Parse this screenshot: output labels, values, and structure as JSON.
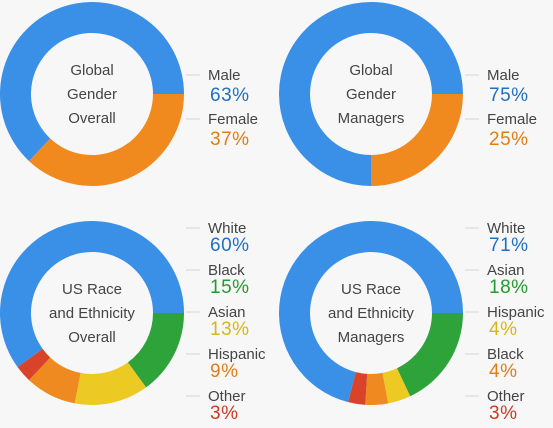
{
  "chart_data": [
    {
      "type": "donut",
      "title_lines": [
        "Global",
        "Gender",
        "Overall"
      ],
      "slices": [
        {
          "label": "Male",
          "value": 63,
          "display": "63%",
          "color": "#3a8fe6",
          "label_color": "#1f6fc2"
        },
        {
          "label": "Female",
          "value": 37,
          "display": "37%",
          "color": "#f08a1f",
          "label_color": "#e07d18"
        }
      ]
    },
    {
      "type": "donut",
      "title_lines": [
        "Global",
        "Gender",
        "Managers"
      ],
      "slices": [
        {
          "label": "Male",
          "value": 75,
          "display": "75%",
          "color": "#3a8fe6",
          "label_color": "#1f6fc2"
        },
        {
          "label": "Female",
          "value": 25,
          "display": "25%",
          "color": "#f08a1f",
          "label_color": "#e07d18"
        }
      ]
    },
    {
      "type": "donut",
      "title_lines": [
        "US Race",
        "and Ethnicity",
        "Overall"
      ],
      "slices": [
        {
          "label": "White",
          "value": 60,
          "display": "60%",
          "color": "#3a8fe6",
          "label_color": "#1f6fc2"
        },
        {
          "label": "Black",
          "value": 15,
          "display": "15%",
          "color": "#2ea33a",
          "label_color": "#259a2e"
        },
        {
          "label": "Asian",
          "value": 13,
          "display": "13%",
          "color": "#ecc923",
          "label_color": "#d8b51a"
        },
        {
          "label": "Hispanic",
          "value": 9,
          "display": "9%",
          "color": "#ee8a1f",
          "label_color": "#e07d18"
        },
        {
          "label": "Other",
          "value": 3,
          "display": "3%",
          "color": "#d8432a",
          "label_color": "#c83a26"
        }
      ]
    },
    {
      "type": "donut",
      "title_lines": [
        "US Race",
        "and Ethnicity",
        "Managers"
      ],
      "slices": [
        {
          "label": "White",
          "value": 71,
          "display": "71%",
          "color": "#3a8fe6",
          "label_color": "#1f6fc2"
        },
        {
          "label": "Asian",
          "value": 18,
          "display": "18%",
          "color": "#2ea33a",
          "label_color": "#259a2e"
        },
        {
          "label": "Hispanic",
          "value": 4,
          "display": "4%",
          "color": "#ecc923",
          "label_color": "#d8b51a"
        },
        {
          "label": "Black",
          "value": 4,
          "display": "4%",
          "color": "#ee8a1f",
          "label_color": "#e07d18"
        },
        {
          "label": "Other",
          "value": 3,
          "display": "3%",
          "color": "#d8432a",
          "label_color": "#c83a26"
        }
      ]
    }
  ]
}
